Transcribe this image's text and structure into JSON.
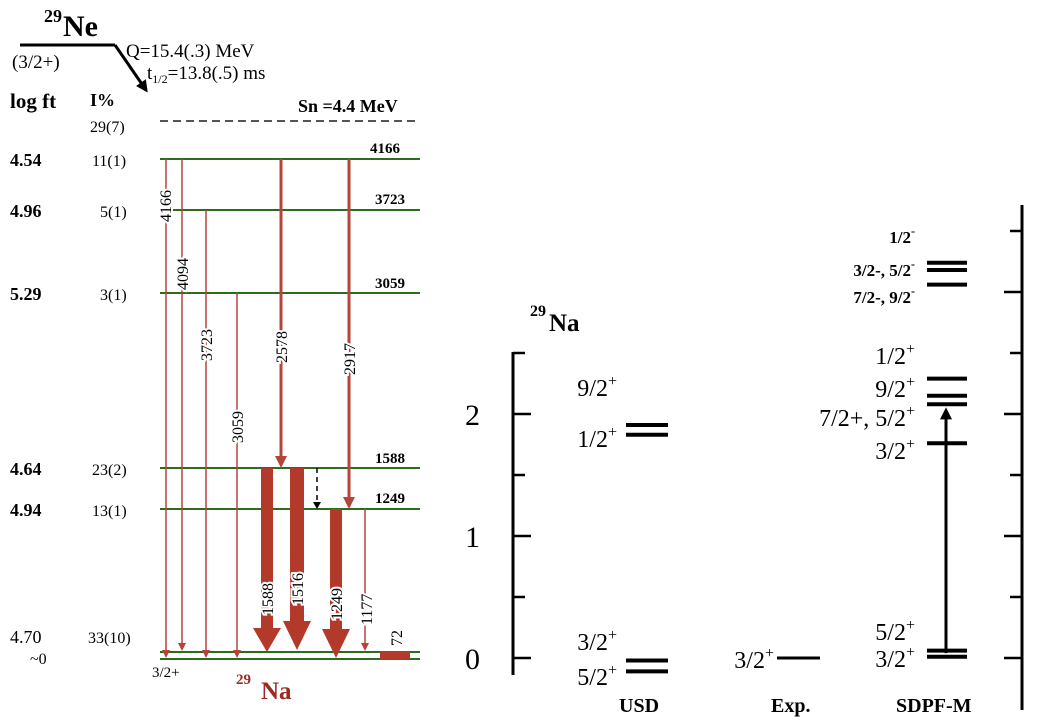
{
  "left_scheme": {
    "parent": {
      "mass": "29",
      "symbol": "Ne",
      "spin": "(3/2+)"
    },
    "decay": {
      "q_value": "Q=15.4(.3) MeV",
      "half_life_prefix": "t",
      "half_life_sub": "1/2",
      "half_life_value": "=13.8(.5) ms"
    },
    "col_logft": "log ft",
    "col_intensity": "I%",
    "sn_label": "Sn =4.4 MeV",
    "sn_intensity": "29(7)",
    "levels": [
      {
        "energy_label": "4166",
        "logft": "4.54",
        "intensity": "11(1)"
      },
      {
        "energy_label": "3723",
        "logft": "4.96",
        "intensity": "5(1)"
      },
      {
        "energy_label": "3059",
        "logft": "5.29",
        "intensity": "3(1)"
      },
      {
        "energy_label": "1588",
        "logft": "4.64",
        "intensity": "23(2)"
      },
      {
        "energy_label": "1249",
        "logft": "4.94",
        "intensity": "13(1)"
      },
      {
        "energy_label": "72",
        "logft": "4.70",
        "intensity": "33(10)"
      },
      {
        "energy_label": "",
        "logft": "~0",
        "intensity": ""
      }
    ],
    "ground_spin": "3/2+",
    "daughter": {
      "mass": "29",
      "symbol": "Na"
    },
    "transitions": [
      {
        "label": "4166"
      },
      {
        "label": "4094"
      },
      {
        "label": "3723"
      },
      {
        "label": "3059"
      },
      {
        "label": "2578"
      },
      {
        "label": "2917"
      },
      {
        "label": "1588"
      },
      {
        "label": "1516"
      },
      {
        "label": "1249"
      },
      {
        "label": "1177"
      },
      {
        "label": "72"
      }
    ]
  },
  "right_scheme": {
    "nucleus": {
      "mass": "29",
      "symbol": "Na"
    },
    "axis_ticks": [
      "0",
      "1",
      "2"
    ],
    "columns": {
      "usd": "USD",
      "exp": "Exp.",
      "sdpfm": "SDPF-M"
    },
    "usd_levels": [
      {
        "spin": "9/2",
        "parity": "+",
        "energy": 1.91
      },
      {
        "spin": "1/2",
        "parity": "+",
        "energy": 1.83
      },
      {
        "spin": "3/2",
        "parity": "+",
        "energy": -0.02
      },
      {
        "spin": "5/2",
        "parity": "+",
        "energy": -0.11
      }
    ],
    "exp_levels": [
      {
        "spin": "3/2",
        "parity": "+",
        "energy": 0.0
      }
    ],
    "sdpfm_levels": [
      {
        "spin": "1/2",
        "parity": "-",
        "energy": 3.24
      },
      {
        "spin": "3/2-, 5/2",
        "parity": "-",
        "energy": 3.18
      },
      {
        "spin": "7/2-, 9/2",
        "parity": "-",
        "energy": 3.06
      },
      {
        "spin": "1/2",
        "parity": "+",
        "energy": 2.29
      },
      {
        "spin": "9/2",
        "parity": "+",
        "energy": 2.15
      },
      {
        "spin": "7/2+, 5/2",
        "parity": "+",
        "energy": 2.08
      },
      {
        "spin": "3/2",
        "parity": "+",
        "energy": 1.76
      },
      {
        "spin": "5/2",
        "parity": "+",
        "energy": 0.06
      },
      {
        "spin": "3/2",
        "parity": "+",
        "energy": 0.01
      }
    ]
  },
  "colors": {
    "level_line": "#2f6b1f",
    "gamma": "#b5453b",
    "gamma_strong": "#b33a2a",
    "daughter_label": "#9b2a22",
    "ink": "#000000"
  }
}
